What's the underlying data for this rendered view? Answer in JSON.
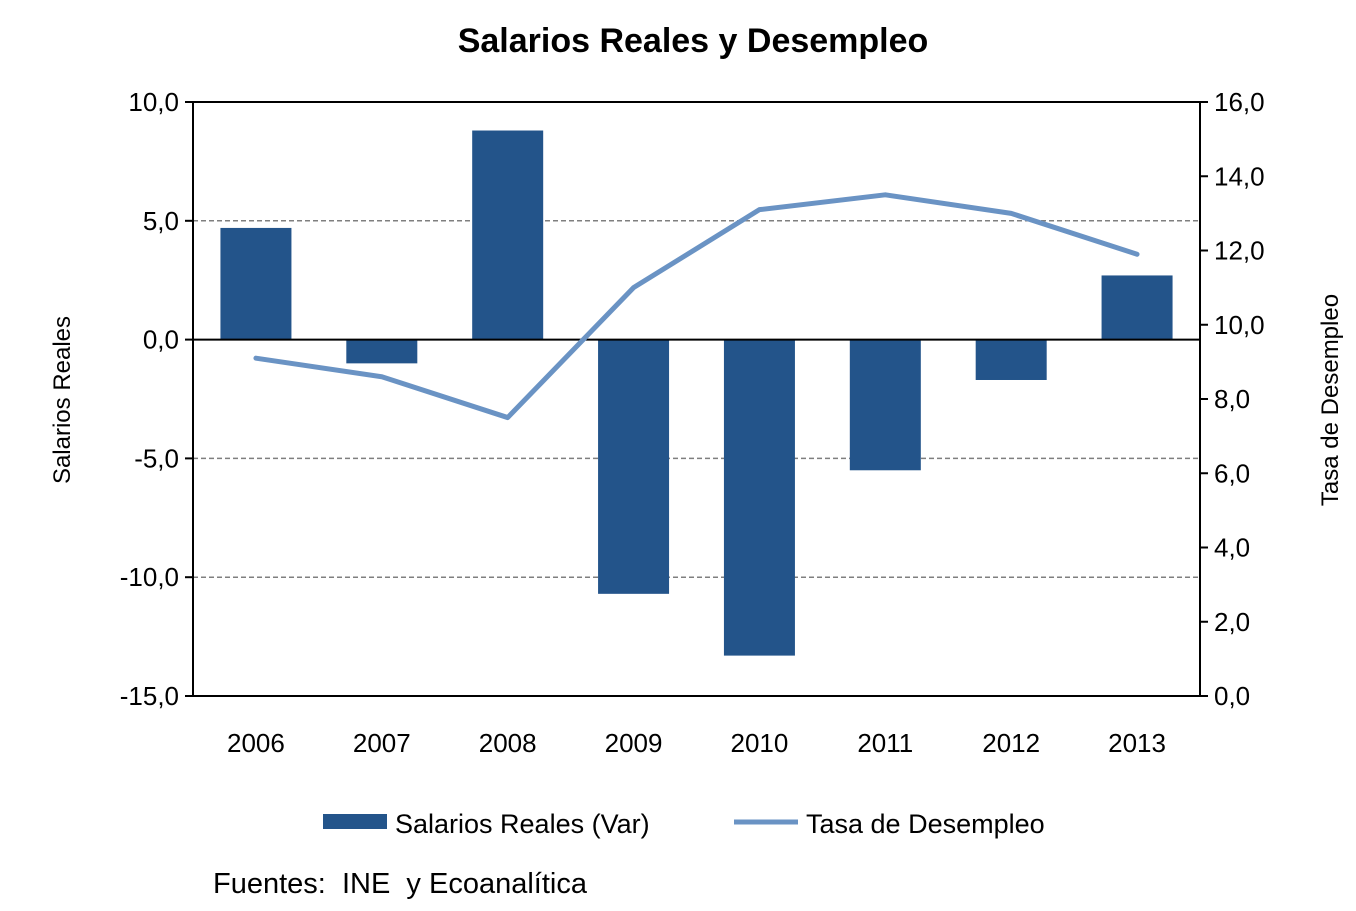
{
  "chart_data": {
    "type": "bar",
    "title": "Salarios Reales y Desempleo",
    "categories": [
      "2006",
      "2007",
      "2008",
      "2009",
      "2010",
      "2011",
      "2012",
      "2013"
    ],
    "series": [
      {
        "name": "Salarios Reales (Var)",
        "type": "bar",
        "axis": "left",
        "color": "#23548A",
        "values": [
          4.7,
          -1.0,
          8.8,
          -10.7,
          -13.3,
          -5.5,
          -1.7,
          2.7
        ]
      },
      {
        "name": "Tasa de Desempleo",
        "type": "line",
        "axis": "right",
        "color": "#6A93C4",
        "values": [
          9.1,
          8.6,
          7.5,
          11.0,
          13.1,
          13.5,
          13.0,
          11.9
        ]
      }
    ],
    "y_left": {
      "label": "Salarios Reales",
      "range": [
        -15,
        10
      ],
      "ticks": [
        "10,0",
        "5,0",
        "0,0",
        "-5,0",
        "-10,0",
        "-15,0"
      ],
      "tick_values": [
        10,
        5,
        0,
        -5,
        -10,
        -15
      ]
    },
    "y_right": {
      "label": "Tasa de Desempleo",
      "range": [
        0,
        16
      ],
      "ticks": [
        "16,0",
        "14,0",
        "12,0",
        "10,0",
        "8,0",
        "6,0",
        "4,0",
        "2,0",
        "0,0"
      ],
      "tick_values": [
        16,
        14,
        12,
        10,
        8,
        6,
        4,
        2,
        0
      ]
    },
    "grid": "horizontal dashed",
    "legend": "bottom",
    "source": "Fuentes:  INE  y Ecoanalítica"
  }
}
